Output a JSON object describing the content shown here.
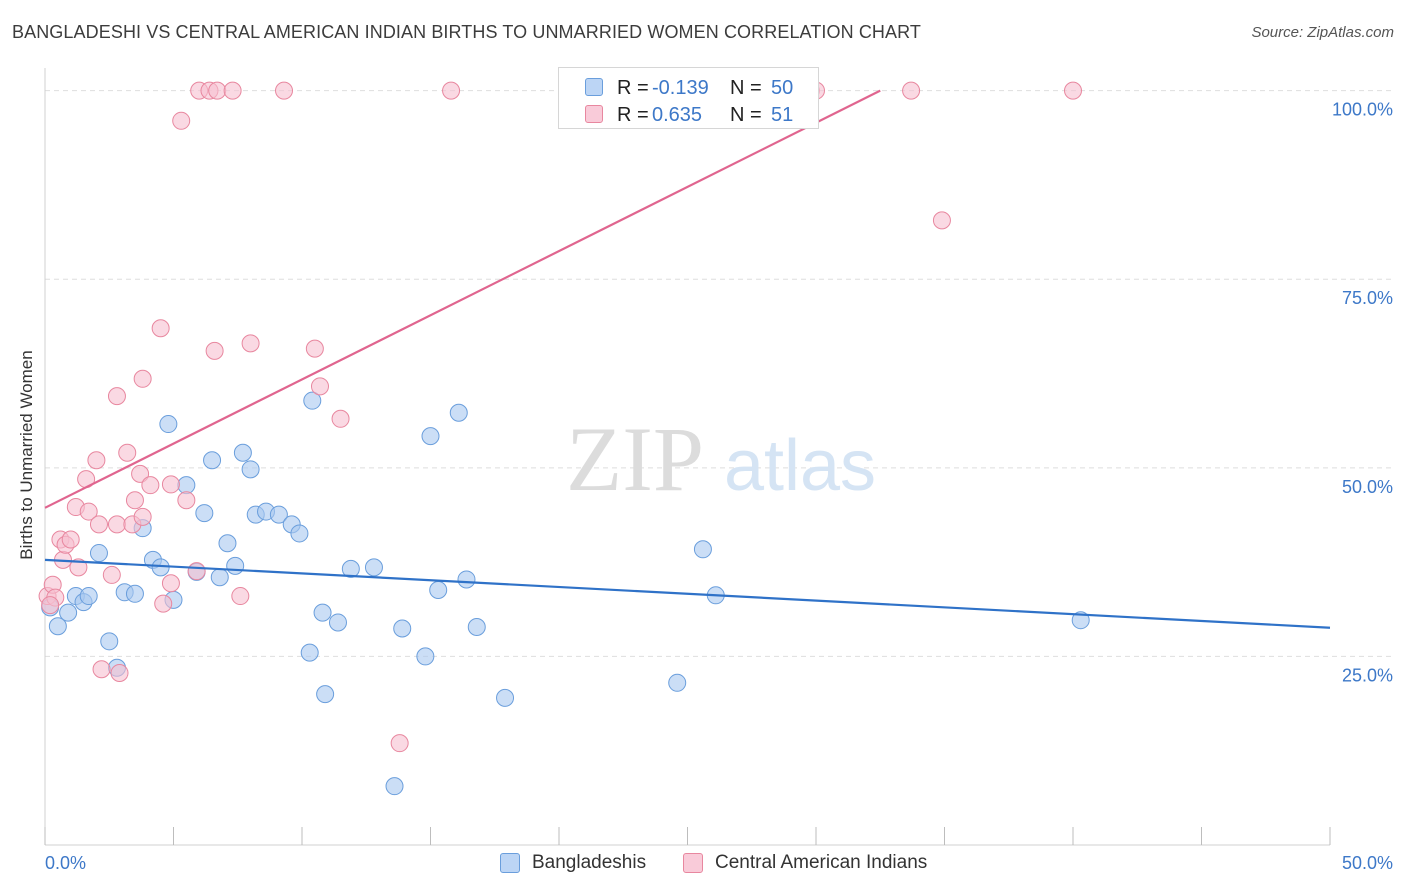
{
  "title": "BANGLADESHI VS CENTRAL AMERICAN INDIAN BIRTHS TO UNMARRIED WOMEN CORRELATION CHART",
  "source": "Source: ZipAtlas.com",
  "watermark": {
    "zip": "ZIP",
    "atlas": "atlas"
  },
  "colors": {
    "blue_fill": "#a9c8f0",
    "blue_stroke": "#6a9edc",
    "blue_line": "#2f72c8",
    "pink_fill": "#f7bfd0",
    "pink_stroke": "#e8879f",
    "pink_line": "#e0658f",
    "tick_label": "#3d78c8",
    "grid": "#dedede"
  },
  "legend_top": {
    "rows": [
      {
        "r_label": "R =",
        "r_value": "-0.139",
        "n_label": "N =",
        "n_value": "50"
      },
      {
        "r_label": "R =",
        "r_value": "0.635",
        "n_label": "N =",
        "n_value": "51"
      }
    ]
  },
  "legend_bottom": {
    "items": [
      "Bangladeshis",
      "Central American Indians"
    ]
  },
  "chart_data": {
    "type": "scatter",
    "title": "BANGLADESHI VS CENTRAL AMERICAN INDIAN BIRTHS TO UNMARRIED WOMEN CORRELATION CHART",
    "xlabel": "",
    "ylabel": "Births to Unmarried Women",
    "xlim": [
      0,
      50
    ],
    "ylim": [
      0,
      103
    ],
    "x_tick_labels": [
      "0.0%",
      "50.0%"
    ],
    "y_tick_labels": [
      "25.0%",
      "50.0%",
      "75.0%",
      "100.0%"
    ],
    "y_ticks": [
      25,
      50,
      75,
      100
    ],
    "grid": true,
    "legend": "top-center",
    "series": [
      {
        "name": "Bangladeshis",
        "r": -0.139,
        "n": 50,
        "trend": {
          "x": [
            0,
            50
          ],
          "y": [
            37.8,
            28.8
          ]
        },
        "points": [
          [
            0.2,
            31.5
          ],
          [
            0.5,
            29.0
          ],
          [
            0.9,
            30.8
          ],
          [
            1.2,
            33.0
          ],
          [
            1.5,
            32.2
          ],
          [
            1.7,
            33.0
          ],
          [
            2.1,
            38.7
          ],
          [
            2.5,
            27.0
          ],
          [
            2.8,
            23.5
          ],
          [
            3.1,
            33.5
          ],
          [
            3.5,
            33.3
          ],
          [
            3.8,
            42.0
          ],
          [
            4.2,
            37.8
          ],
          [
            4.5,
            36.8
          ],
          [
            4.8,
            55.8
          ],
          [
            5.0,
            32.5
          ],
          [
            5.5,
            47.7
          ],
          [
            5.9,
            36.2
          ],
          [
            6.2,
            44.0
          ],
          [
            6.5,
            51.0
          ],
          [
            6.8,
            35.5
          ],
          [
            7.1,
            40.0
          ],
          [
            7.4,
            37.0
          ],
          [
            7.7,
            52.0
          ],
          [
            8.0,
            49.8
          ],
          [
            8.2,
            43.8
          ],
          [
            8.6,
            44.2
          ],
          [
            9.1,
            43.8
          ],
          [
            9.6,
            42.5
          ],
          [
            9.9,
            41.3
          ],
          [
            10.3,
            25.5
          ],
          [
            10.4,
            58.9
          ],
          [
            10.8,
            30.8
          ],
          [
            10.9,
            20.0
          ],
          [
            11.4,
            29.5
          ],
          [
            11.9,
            36.6
          ],
          [
            12.8,
            36.8
          ],
          [
            13.6,
            7.8
          ],
          [
            13.9,
            28.7
          ],
          [
            14.8,
            25.0
          ],
          [
            15.0,
            54.2
          ],
          [
            15.3,
            33.8
          ],
          [
            16.1,
            57.3
          ],
          [
            16.4,
            35.2
          ],
          [
            16.8,
            28.9
          ],
          [
            17.9,
            19.5
          ],
          [
            24.6,
            21.5
          ],
          [
            25.6,
            39.2
          ],
          [
            26.1,
            33.1
          ],
          [
            40.3,
            29.8
          ]
        ]
      },
      {
        "name": "Central American Indians",
        "r": 0.635,
        "n": 51,
        "trend": {
          "x": [
            0,
            32.5
          ],
          "y": [
            44.7,
            100
          ]
        },
        "points": [
          [
            0.1,
            33.0
          ],
          [
            0.3,
            34.5
          ],
          [
            0.4,
            32.8
          ],
          [
            0.6,
            40.5
          ],
          [
            0.7,
            37.8
          ],
          [
            0.8,
            39.8
          ],
          [
            1.0,
            40.5
          ],
          [
            1.2,
            44.8
          ],
          [
            1.3,
            36.8
          ],
          [
            1.6,
            48.5
          ],
          [
            1.7,
            44.2
          ],
          [
            2.0,
            51.0
          ],
          [
            2.1,
            42.5
          ],
          [
            2.2,
            23.3
          ],
          [
            2.6,
            35.8
          ],
          [
            2.8,
            42.5
          ],
          [
            2.8,
            59.5
          ],
          [
            2.9,
            22.8
          ],
          [
            3.2,
            52.0
          ],
          [
            3.4,
            42.5
          ],
          [
            3.5,
            45.7
          ],
          [
            3.7,
            49.2
          ],
          [
            3.8,
            61.8
          ],
          [
            3.8,
            43.5
          ],
          [
            4.1,
            47.7
          ],
          [
            4.5,
            68.5
          ],
          [
            4.6,
            32.0
          ],
          [
            4.9,
            47.8
          ],
          [
            4.9,
            34.7
          ],
          [
            5.3,
            96.0
          ],
          [
            5.5,
            45.7
          ],
          [
            5.9,
            36.3
          ],
          [
            6.0,
            100.0
          ],
          [
            6.4,
            100.0
          ],
          [
            6.6,
            65.5
          ],
          [
            6.7,
            100.0
          ],
          [
            7.3,
            100.0
          ],
          [
            7.6,
            33.0
          ],
          [
            8.0,
            66.5
          ],
          [
            9.3,
            100.0
          ],
          [
            10.5,
            65.8
          ],
          [
            10.7,
            60.8
          ],
          [
            11.5,
            56.5
          ],
          [
            13.8,
            13.5
          ],
          [
            15.8,
            100.0
          ],
          [
            29.8,
            100.0
          ],
          [
            30.0,
            100.0
          ],
          [
            33.7,
            100.0
          ],
          [
            34.9,
            82.8
          ],
          [
            40.0,
            100.0
          ],
          [
            0.2,
            31.8
          ]
        ]
      }
    ]
  }
}
